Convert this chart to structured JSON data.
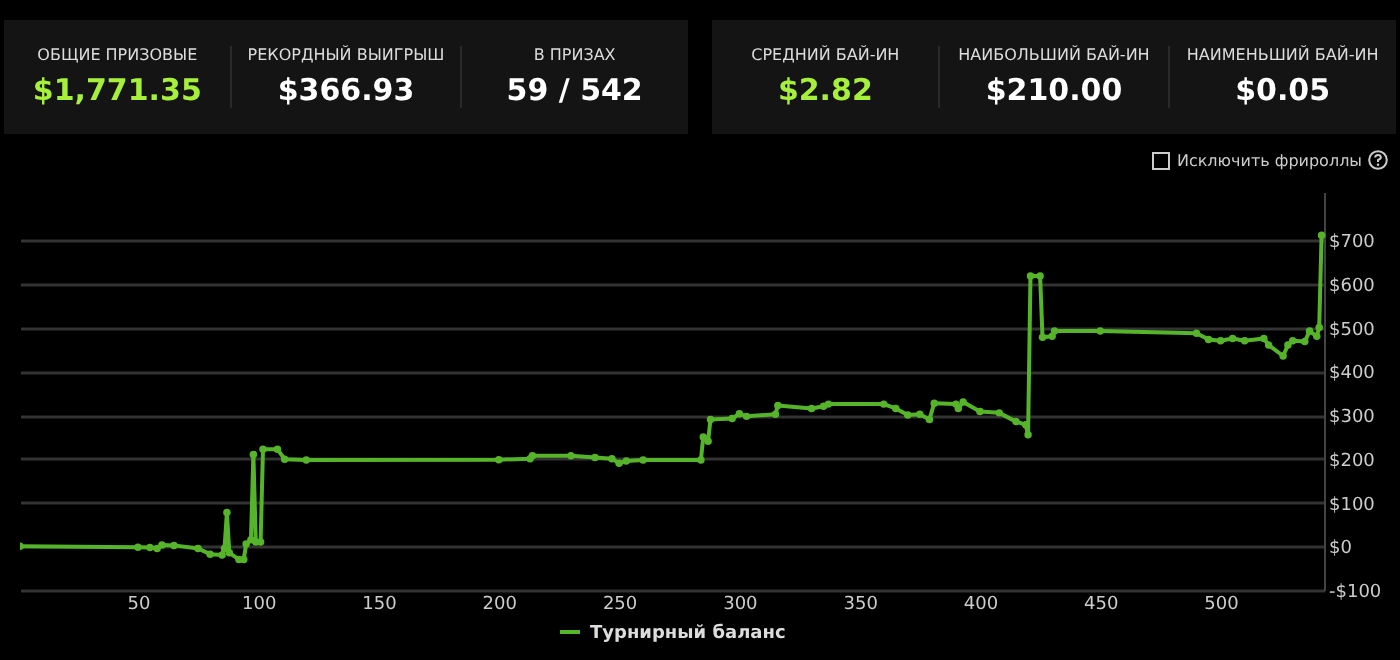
{
  "chart_data": [
    {
      "type": "other",
      "annotations": [
        "ОБЩИЕ ПРИЗОВЫЕ",
        "$1,771.35",
        "РЕКОРДНЫЙ ВЫИГРЫШ",
        "$366.93",
        "В ПРИЗАХ",
        "59 / 542",
        "СРЕДНИЙ БАЙ-ИН",
        "$2.82",
        "НАИБОЛЬШИЙ БАЙ-ИН",
        "$210.00",
        "НАИМЕНЬШИЙ БАЙ-ИН",
        "$0.05"
      ]
    },
    {
      "type": "line",
      "annotations": [
        "Исключить фрироллы"
      ],
      "xlim": [
        1,
        543
      ],
      "xticks": [
        50,
        100,
        150,
        200,
        250,
        300,
        350,
        400,
        450,
        500
      ],
      "ylim": [
        -100,
        810
      ],
      "yticks": [
        {
          "value": -100,
          "label": "-$100"
        },
        {
          "value": 0,
          "label": "$0"
        },
        {
          "value": 100,
          "label": "$100"
        },
        {
          "value": 200,
          "label": "$200"
        },
        {
          "value": 300,
          "label": "$300"
        },
        {
          "value": 400,
          "label": "$400"
        },
        {
          "value": 500,
          "label": "$500"
        },
        {
          "value": 600,
          "label": "$600"
        },
        {
          "value": 700,
          "label": "$700"
        }
      ],
      "grid": "y",
      "legend": "bottom",
      "marker": "circle",
      "series": [
        {
          "name": "Турнирный баланс",
          "color": "#56b42a",
          "x": [
            1,
            50,
            55,
            58,
            60,
            65,
            75,
            80,
            85,
            86,
            87,
            88,
            92,
            94,
            95,
            97,
            98,
            99,
            101,
            102,
            108,
            111,
            120,
            200,
            213,
            214,
            230,
            240,
            247,
            250,
            253,
            260,
            284,
            285,
            287,
            288,
            297,
            300,
            303,
            315,
            316,
            330,
            335,
            337,
            360,
            365,
            370,
            375,
            379,
            381,
            390,
            391,
            393,
            400,
            408,
            415,
            419,
            420,
            421,
            425,
            426,
            430,
            431,
            450,
            490,
            495,
            500,
            505,
            510,
            518,
            520,
            526,
            528,
            530,
            535,
            537,
            540,
            541,
            542
          ],
          "values": [
            0,
            -2,
            -3,
            -5,
            3,
            2,
            -5,
            -18,
            -20,
            -5,
            77,
            -15,
            -30,
            -30,
            5,
            15,
            210,
            10,
            10,
            222,
            222,
            199,
            197,
            198,
            200,
            207,
            207,
            203,
            200,
            190,
            195,
            197,
            197,
            250,
            240,
            290,
            292,
            303,
            297,
            302,
            322,
            315,
            320,
            325,
            325,
            315,
            300,
            302,
            290,
            327,
            325,
            315,
            330,
            308,
            305,
            285,
            278,
            255,
            618,
            618,
            478,
            480,
            492,
            492,
            487,
            473,
            470,
            475,
            470,
            475,
            460,
            435,
            460,
            470,
            468,
            492,
            480,
            500,
            711
          ]
        }
      ]
    }
  ]
}
